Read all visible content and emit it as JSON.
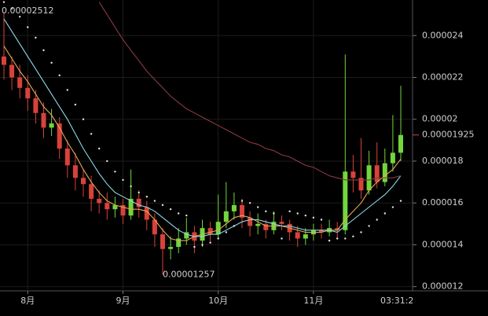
{
  "chart_data": {
    "type": "candlestick",
    "categories": [
      null,
      null,
      null,
      "8月",
      null,
      null,
      null,
      null,
      null,
      null,
      null,
      null,
      null,
      null,
      null,
      "9月",
      null,
      null,
      null,
      null,
      null,
      null,
      null,
      null,
      null,
      null,
      null,
      "10月",
      null,
      null,
      null,
      null,
      null,
      null,
      null,
      null,
      null,
      null,
      null,
      "11月",
      null,
      null,
      null,
      null,
      null,
      null,
      null,
      null,
      null,
      null,
      null
    ],
    "open": [
      2.3e-05,
      2.26e-05,
      2.2e-05,
      2.15e-05,
      2.1e-05,
      2.03e-05,
      1.96e-05,
      1.98e-05,
      1.86e-05,
      1.78e-05,
      1.72e-05,
      1.69e-05,
      1.62e-05,
      1.6e-05,
      1.57e-05,
      1.59e-05,
      1.54e-05,
      1.62e-05,
      1.58e-05,
      1.52e-05,
      1.45e-05,
      1.38e-05,
      1.39e-05,
      1.43e-05,
      1.46e-05,
      1.42e-05,
      1.48e-05,
      1.45e-05,
      1.51e-05,
      1.56e-05,
      1.59e-05,
      1.53e-05,
      1.49e-05,
      1.5e-05,
      1.47e-05,
      1.51e-05,
      1.5e-05,
      1.46e-05,
      1.43e-05,
      1.45e-05,
      1.47e-05,
      1.46e-05,
      1.48e-05,
      1.47e-05,
      1.75e-05,
      1.72e-05,
      1.66e-05,
      1.78e-05,
      1.7e-05,
      1.79e-05,
      1.84e-05
    ],
    "high": [
      2.512e-05,
      2.3e-05,
      2.26e-05,
      2.21e-05,
      2.14e-05,
      2.08e-05,
      2.05e-05,
      2.01e-05,
      1.9e-05,
      1.84e-05,
      1.76e-05,
      1.73e-05,
      1.66e-05,
      1.65e-05,
      1.63e-05,
      1.62e-05,
      1.76e-05,
      1.66e-05,
      1.61e-05,
      1.55e-05,
      1.48e-05,
      1.44e-05,
      1.48e-05,
      1.53e-05,
      1.49e-05,
      1.52e-05,
      1.51e-05,
      1.64e-05,
      1.7e-05,
      1.65e-05,
      1.62e-05,
      1.56e-05,
      1.55e-05,
      1.52e-05,
      1.56e-05,
      1.54e-05,
      1.52e-05,
      1.49e-05,
      1.48e-05,
      1.5e-05,
      1.5e-05,
      1.52e-05,
      1.51e-05,
      2.31e-05,
      1.83e-05,
      1.91e-05,
      1.85e-05,
      1.89e-05,
      1.86e-05,
      2.02e-05,
      2.16e-05
    ],
    "low": [
      2.19e-05,
      2.14e-05,
      2.1e-05,
      2.04e-05,
      1.98e-05,
      1.91e-05,
      1.92e-05,
      1.81e-05,
      1.72e-05,
      1.66e-05,
      1.63e-05,
      1.56e-05,
      1.55e-05,
      1.52e-05,
      1.53e-05,
      1.5e-05,
      1.52e-05,
      1.53e-05,
      1.47e-05,
      1.39e-05,
      1.257e-05,
      1.33e-05,
      1.36e-05,
      1.4e-05,
      1.36e-05,
      1.39e-05,
      1.41e-05,
      1.43e-05,
      1.48e-05,
      1.52e-05,
      1.48e-05,
      1.44e-05,
      1.45e-05,
      1.43e-05,
      1.45e-05,
      1.47e-05,
      1.42e-05,
      1.39e-05,
      1.4e-05,
      1.42e-05,
      1.43e-05,
      1.44e-05,
      1.43e-05,
      1.45e-05,
      1.65e-05,
      1.62e-05,
      1.64e-05,
      1.67e-05,
      1.68e-05,
      1.75e-05,
      1.8e-05
    ],
    "close": [
      2.26e-05,
      2.2e-05,
      2.15e-05,
      2.1e-05,
      2.03e-05,
      1.96e-05,
      1.98e-05,
      1.86e-05,
      1.78e-05,
      1.72e-05,
      1.69e-05,
      1.62e-05,
      1.6e-05,
      1.57e-05,
      1.59e-05,
      1.54e-05,
      1.62e-05,
      1.58e-05,
      1.52e-05,
      1.45e-05,
      1.38e-05,
      1.39e-05,
      1.43e-05,
      1.46e-05,
      1.42e-05,
      1.48e-05,
      1.45e-05,
      1.51e-05,
      1.56e-05,
      1.59e-05,
      1.53e-05,
      1.49e-05,
      1.5e-05,
      1.47e-05,
      1.51e-05,
      1.5e-05,
      1.46e-05,
      1.43e-05,
      1.45e-05,
      1.47e-05,
      1.46e-05,
      1.48e-05,
      1.47e-05,
      1.75e-05,
      1.72e-05,
      1.66e-05,
      1.78e-05,
      1.7e-05,
      1.79e-05,
      1.84e-05,
      1.925e-05
    ],
    "up_color": "#72d63c",
    "down_color": "#d8423a",
    "lines": [
      {
        "color": "#e8a857",
        "values": [
          2.35e-05,
          2.29e-05,
          2.23e-05,
          2.18e-05,
          2.12e-05,
          2.06e-05,
          2.02e-05,
          1.96e-05,
          1.89e-05,
          1.83e-05,
          1.76e-05,
          1.7e-05,
          1.65e-05,
          1.61e-05,
          1.59e-05,
          1.58e-05,
          1.57e-05,
          1.57e-05,
          1.56e-05,
          1.52e-05,
          1.47e-05,
          1.43e-05,
          1.42e-05,
          1.42e-05,
          1.44e-05,
          1.45e-05,
          1.46e-05,
          1.47e-05,
          1.5e-05,
          1.53e-05,
          1.54e-05,
          1.53e-05,
          1.51e-05,
          1.49e-05,
          1.49e-05,
          1.49e-05,
          1.48e-05,
          1.47e-05,
          1.46e-05,
          1.46e-05,
          1.46e-05,
          1.47e-05,
          1.47e-05,
          1.52e-05,
          1.56e-05,
          1.6e-05,
          1.66e-05,
          1.7e-05,
          1.73e-05,
          1.76e-05,
          1.81e-05
        ]
      },
      {
        "color": "#8fd8e8",
        "values": [
          2.48e-05,
          2.42e-05,
          2.36e-05,
          2.3e-05,
          2.24e-05,
          2.18e-05,
          2.12e-05,
          2.06e-05,
          2e-05,
          1.93e-05,
          1.86e-05,
          1.8e-05,
          1.74e-05,
          1.69e-05,
          1.65e-05,
          1.63e-05,
          1.61e-05,
          1.59e-05,
          1.58e-05,
          1.56e-05,
          1.53e-05,
          1.5e-05,
          1.47e-05,
          1.45e-05,
          1.44e-05,
          1.44e-05,
          1.45e-05,
          1.45e-05,
          1.47e-05,
          1.49e-05,
          1.51e-05,
          1.52e-05,
          1.52e-05,
          1.51e-05,
          1.5e-05,
          1.49e-05,
          1.49e-05,
          1.48e-05,
          1.47e-05,
          1.47e-05,
          1.47e-05,
          1.47e-05,
          1.46e-05,
          1.49e-05,
          1.52e-05,
          1.55e-05,
          1.58e-05,
          1.61e-05,
          1.64e-05,
          1.68e-05,
          1.73e-05
        ]
      },
      {
        "color": "#8a3a44",
        "values": [
          null,
          null,
          null,
          null,
          null,
          null,
          null,
          null,
          null,
          null,
          null,
          null,
          2.56e-05,
          2.5e-05,
          2.44e-05,
          2.38e-05,
          2.33e-05,
          2.28e-05,
          2.23e-05,
          2.19e-05,
          2.15e-05,
          2.11e-05,
          2.08e-05,
          2.05e-05,
          2.03e-05,
          2.01e-05,
          1.99e-05,
          1.97e-05,
          1.95e-05,
          1.93e-05,
          1.91e-05,
          1.89e-05,
          1.88e-05,
          1.86e-05,
          1.85e-05,
          1.83e-05,
          1.82e-05,
          1.8e-05,
          1.78e-05,
          1.77e-05,
          1.75e-05,
          1.73e-05,
          1.72e-05,
          1.71e-05,
          1.71e-05,
          1.71e-05,
          1.71e-05,
          1.72e-05,
          1.72e-05,
          1.72e-05,
          1.73e-05
        ]
      }
    ],
    "sar": {
      "color": "#e8e8e8",
      "values": [
        2.56e-05,
        2.53e-05,
        2.49e-05,
        2.44e-05,
        2.39e-05,
        2.33e-05,
        2.27e-05,
        2.21e-05,
        2.14e-05,
        2.07e-05,
        2e-05,
        1.93e-05,
        1.86e-05,
        1.8e-05,
        1.75e-05,
        1.71e-05,
        1.68e-05,
        1.65e-05,
        1.63e-05,
        1.61e-05,
        1.59e-05,
        1.57e-05,
        1.55e-05,
        1.54e-05,
        1.39e-05,
        1.4e-05,
        1.41e-05,
        1.43e-05,
        1.46e-05,
        1.49e-05,
        1.61e-05,
        1.6e-05,
        1.58e-05,
        1.56e-05,
        1.55e-05,
        1.43e-05,
        1.56e-05,
        1.55e-05,
        1.54e-05,
        1.53e-05,
        1.52e-05,
        1.42e-05,
        1.43e-05,
        1.43e-05,
        1.44e-05,
        1.46e-05,
        1.49e-05,
        1.52e-05,
        1.55e-05,
        1.58e-05,
        1.61e-05
      ]
    },
    "ylim": [
      1.18e-05,
      2.57e-05
    ],
    "yticks": [
      1.2e-05,
      1.4e-05,
      1.6e-05,
      1.8e-05,
      2e-05,
      2.2e-05,
      2.4e-05
    ],
    "grid": true,
    "time_label": "03:31:2"
  }
}
